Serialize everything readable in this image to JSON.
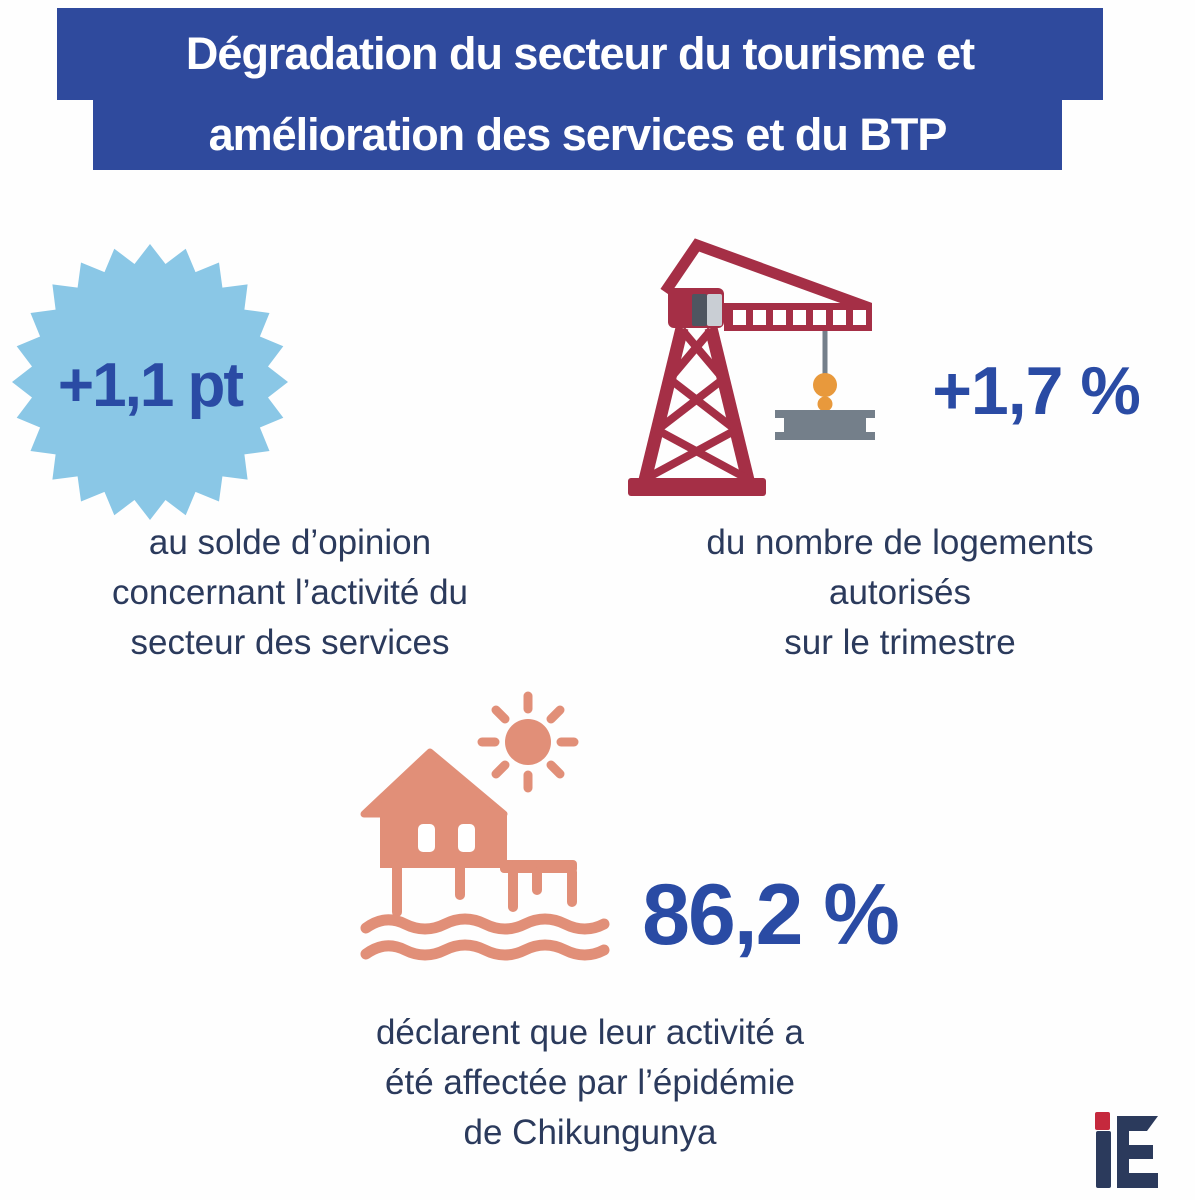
{
  "title": {
    "line1": "Dégradation du secteur du tourisme et",
    "line2": "amélioration des services et du BTP"
  },
  "stats": [
    {
      "icon": "starburst-badge",
      "value": "+1,1 pt",
      "caption_lines": [
        "au solde d’opinion",
        "concernant l’activité du",
        "secteur des services"
      ]
    },
    {
      "icon": "construction-crane",
      "value": "+1,7 %",
      "caption_lines": [
        "du nombre de logements",
        "autorisés",
        "sur le trimestre"
      ]
    },
    {
      "icon": "stilt-house-with-sun",
      "value": "86,2 %",
      "caption_lines": [
        "déclarent que leur activité a",
        "été affectée par l’épidémie",
        "de Chikungunya"
      ]
    }
  ],
  "logo": {
    "text": "iE"
  },
  "colors": {
    "background": "#fefefe",
    "banner_blue": "#2f4a9d",
    "badge_blue": "#8ac7e6",
    "stat_blue": "#2a4ba4",
    "text_navy": "#2b3a5c",
    "crane_red": "#a52f46",
    "metal_gray": "#747f8a",
    "cab_dark": "#4e5560",
    "cab_light": "#c9ced4",
    "hook_orange": "#e8993c",
    "house_salmon": "#e18f78",
    "logo_red": "#c5293d",
    "logo_navy": "#2b3a5c"
  }
}
